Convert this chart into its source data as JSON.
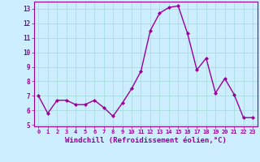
{
  "x": [
    0,
    1,
    2,
    3,
    4,
    5,
    6,
    7,
    8,
    9,
    10,
    11,
    12,
    13,
    14,
    15,
    16,
    17,
    18,
    19,
    20,
    21,
    22,
    23
  ],
  "y": [
    7.0,
    5.8,
    6.7,
    6.7,
    6.4,
    6.4,
    6.7,
    6.2,
    5.6,
    6.5,
    7.5,
    8.7,
    11.5,
    12.7,
    13.1,
    13.2,
    11.3,
    8.8,
    9.6,
    7.2,
    8.2,
    7.1,
    5.5,
    5.5
  ],
  "line_color": "#990099",
  "marker": "D",
  "marker_size": 2,
  "line_width": 1.0,
  "xlabel": "Windchill (Refroidissement éolien,°C)",
  "xlabel_fontsize": 6.5,
  "bg_color": "#cceeff",
  "grid_color": "#aadddd",
  "tick_color": "#990099",
  "label_color": "#990099",
  "ylim": [
    4.9,
    13.5
  ],
  "xlim": [
    -0.5,
    23.5
  ],
  "yticks": [
    5,
    6,
    7,
    8,
    9,
    10,
    11,
    12,
    13
  ],
  "xticks": [
    0,
    1,
    2,
    3,
    4,
    5,
    6,
    7,
    8,
    9,
    10,
    11,
    12,
    13,
    14,
    15,
    16,
    17,
    18,
    19,
    20,
    21,
    22,
    23
  ]
}
